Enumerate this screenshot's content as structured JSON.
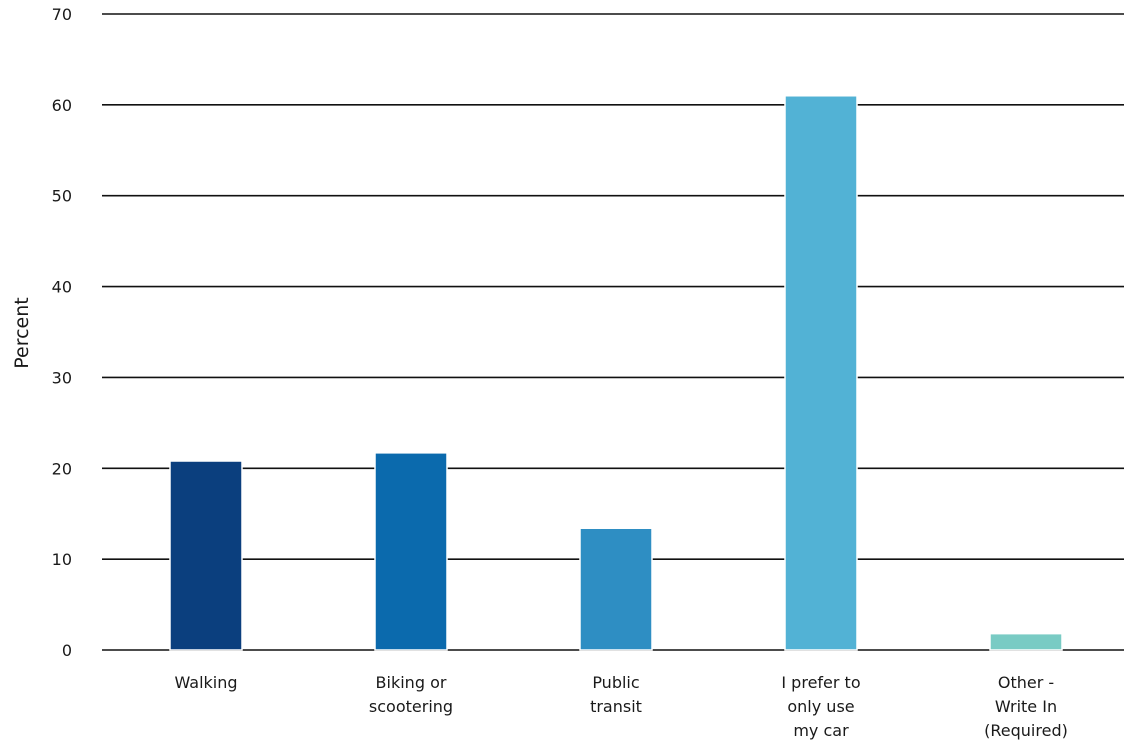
{
  "chart_data": {
    "type": "bar",
    "categories": [
      "Walking",
      "Biking or scootering",
      "Public transit",
      "I prefer to only use my car",
      "Other - Write In (Required)"
    ],
    "category_label_lines": [
      [
        "Walking"
      ],
      [
        "Biking or",
        "scootering"
      ],
      [
        "Public",
        "transit"
      ],
      [
        "I prefer to",
        "only use",
        "my car"
      ],
      [
        "Other -",
        "Write In",
        "(Required)"
      ]
    ],
    "values": [
      20.8,
      21.7,
      13.4,
      61.0,
      1.8
    ],
    "colors": [
      "#0b3f7e",
      "#0b6aad",
      "#2e8ec3",
      "#52b2d5",
      "#79cbc4"
    ],
    "title": "",
    "xlabel": "",
    "ylabel": "Percent",
    "ylim": [
      0,
      70
    ],
    "yticks": [
      0,
      10,
      20,
      30,
      40,
      50,
      60,
      70
    ],
    "grid": true,
    "legend": "none"
  }
}
